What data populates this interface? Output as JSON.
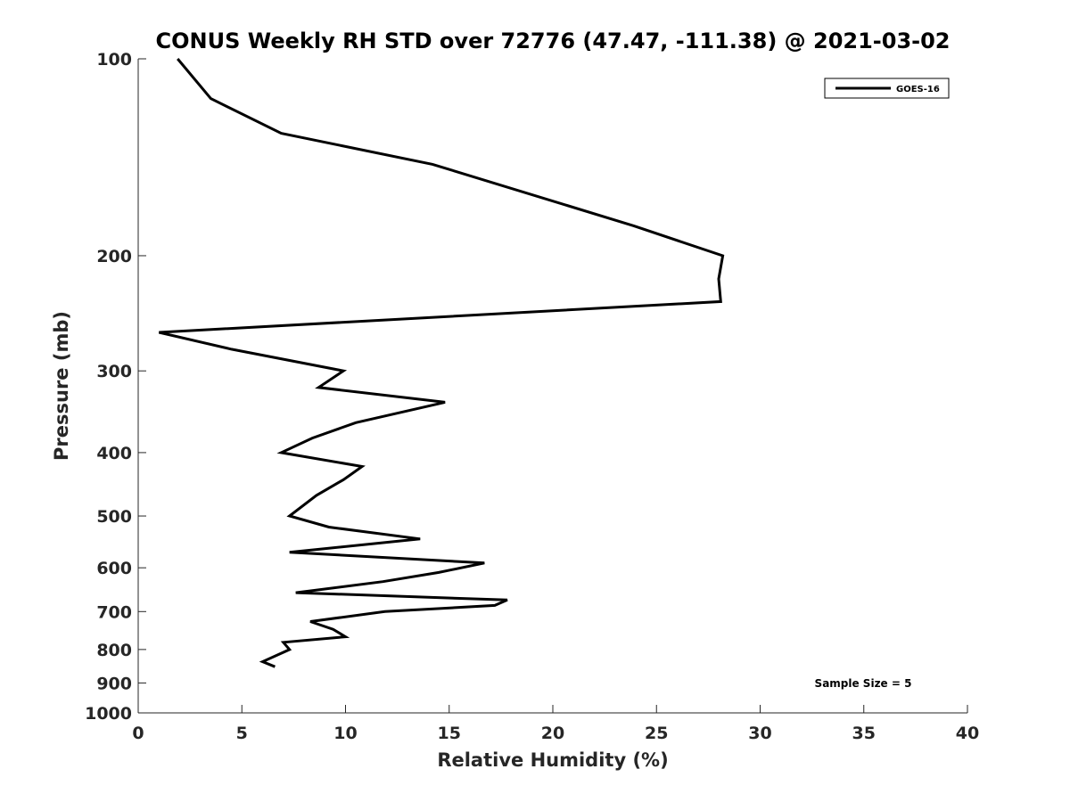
{
  "chart_data": {
    "type": "line",
    "title": "CONUS Weekly RH STD over 72776 (47.47, -111.38) @ 2021-03-02",
    "xlabel": "Relative Humidity (%)",
    "ylabel": "Pressure (mb)",
    "xlim": [
      0,
      40
    ],
    "ylim": [
      100,
      1000
    ],
    "y_scale": "log",
    "y_reversed": true,
    "grid": false,
    "legend_position": "top-right",
    "x_ticks": [
      "0",
      "5",
      "10",
      "15",
      "20",
      "25",
      "30",
      "35",
      "40"
    ],
    "y_ticks": [
      "100",
      "200",
      "300",
      "400",
      "500",
      "600",
      "700",
      "800",
      "900",
      "1000"
    ],
    "series": [
      {
        "name": "GOES-16",
        "color": "#000000",
        "x": [
          1.9,
          3.5,
          6.9,
          14.2,
          23.9,
          28.2,
          28.0,
          28.1,
          1.0,
          4.5,
          9.9,
          8.7,
          14.8,
          10.5,
          8.4,
          6.9,
          10.8,
          9.9,
          8.6,
          7.3,
          9.2,
          13.6,
          7.3,
          16.7,
          14.5,
          11.8,
          7.6,
          17.8,
          17.2,
          11.9,
          8.3,
          9.4,
          10.0,
          7.0,
          7.3,
          6.0,
          6.6
        ],
        "y": [
          100,
          115,
          130,
          145,
          180,
          200,
          217,
          235,
          262,
          278,
          300,
          318,
          335,
          360,
          380,
          400,
          420,
          440,
          465,
          500,
          520,
          542,
          568,
          590,
          610,
          630,
          655,
          672,
          685,
          700,
          725,
          745,
          765,
          780,
          800,
          835,
          850
        ]
      }
    ],
    "annotations": [
      "Sample Size = 5"
    ]
  }
}
